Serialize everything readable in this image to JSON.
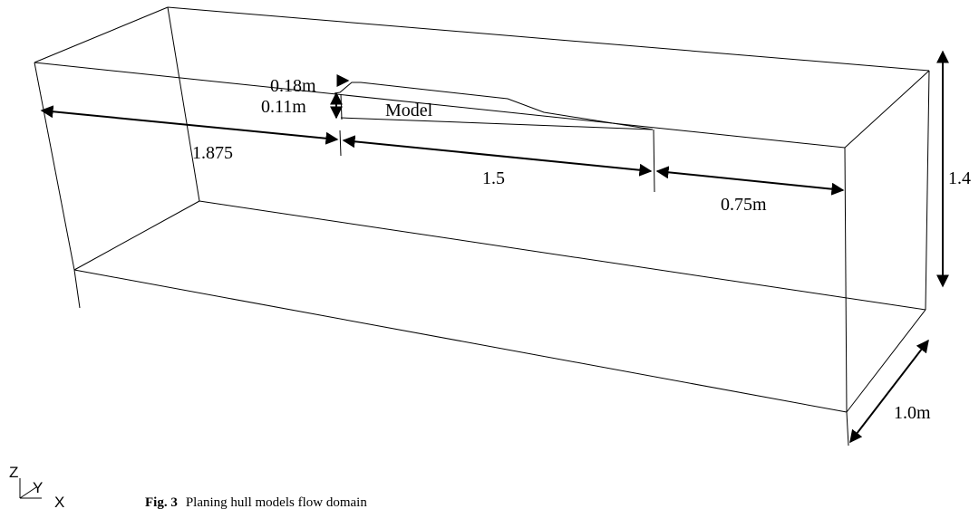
{
  "labels": {
    "height_018": "0.18m",
    "height_011": "0.11m",
    "model": "Model",
    "length_upstream": "1.875",
    "length_model": "1.5",
    "length_downstream": "0.75m",
    "depth": "1.4",
    "width": "1.0m"
  },
  "axes": {
    "z": "Z",
    "y": "Y",
    "x": "X"
  },
  "caption": {
    "label": "Fig. 3",
    "text": "Planing hull models flow domain"
  }
}
